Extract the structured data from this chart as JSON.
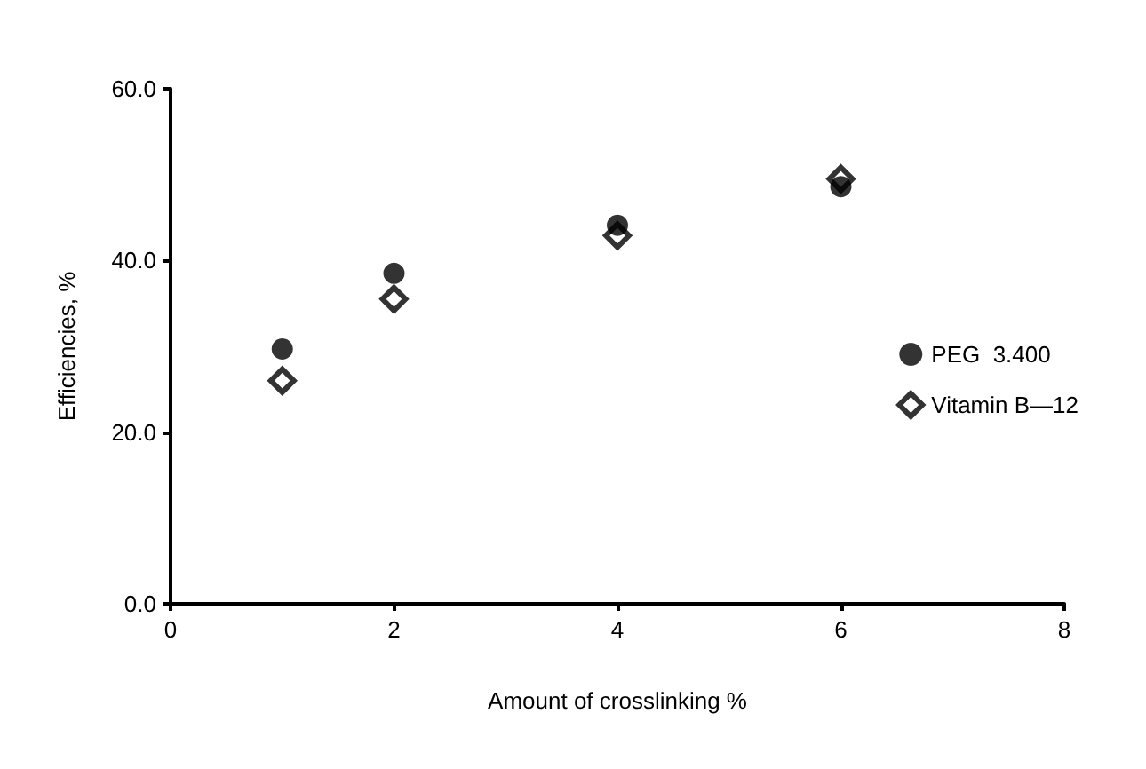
{
  "chart_data": {
    "type": "scatter",
    "xlabel": "Amount of crosslinking %",
    "ylabel": "Efficiencies, %",
    "x": [
      1,
      2,
      4,
      6
    ],
    "series": [
      {
        "name": "PEG  3.400",
        "color": "#000000",
        "marker": "circle",
        "values": [
          29.7,
          38.5,
          44.1,
          48.6
        ]
      },
      {
        "name": "Vitamin B—12",
        "color": "#000000",
        "marker": "diamond",
        "values": [
          26.0,
          35.5,
          42.9,
          49.5
        ]
      }
    ],
    "xlim": [
      0,
      8
    ],
    "xticks": [
      0,
      2,
      4,
      6,
      8
    ],
    "ylim": [
      0,
      60
    ],
    "yticks": [
      {
        "value": 0,
        "label": "0.0"
      },
      {
        "value": 20,
        "label": "20.0"
      },
      {
        "value": 40,
        "label": "40.0"
      },
      {
        "value": 60,
        "label": "60.0"
      }
    ],
    "grid": false,
    "legend": "right"
  }
}
